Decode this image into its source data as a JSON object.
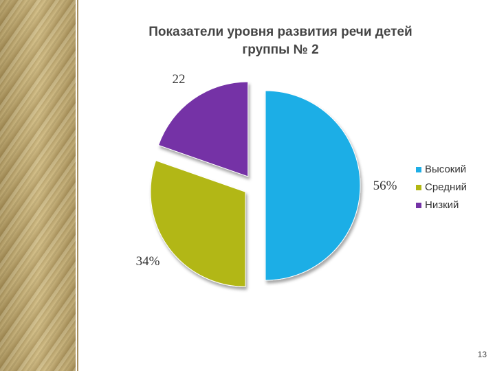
{
  "chart_data": {
    "type": "pie",
    "title": "Показатели уровня развития речи детей группы № 2",
    "categories": [
      "Высокий",
      "Средний",
      "Низкий"
    ],
    "values": [
      56,
      34,
      22
    ],
    "value_labels": [
      "56%",
      "34%",
      "22"
    ],
    "colors": [
      "#1eaee6",
      "#b2b712",
      "#7433a6"
    ],
    "legend": "right"
  },
  "slide_number": "13"
}
